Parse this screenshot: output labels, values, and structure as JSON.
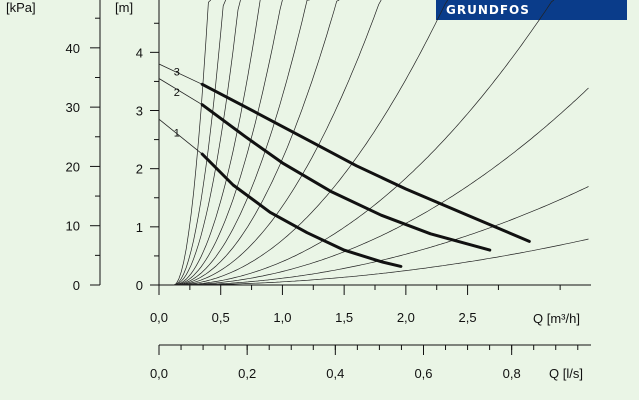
{
  "brand": {
    "name": "GRUNDFOS"
  },
  "chart_data": {
    "type": "line",
    "y_left_label": "[kPa]",
    "y_left_ticks": [
      "0",
      "10",
      "20",
      "30",
      "40"
    ],
    "y_right_label": "[m]",
    "y_right_ticks": [
      "0",
      "1",
      "2",
      "3",
      "4"
    ],
    "x_label": "Q [m³/h]",
    "x_ticks": [
      "0,0",
      "0,5",
      "1,0",
      "1,5",
      "2,0",
      "2,5"
    ],
    "x2_label": "Q [l/s]",
    "x2_ticks": [
      "0,0",
      "0,2",
      "0,4",
      "0,6",
      "0,8"
    ],
    "xlim": [
      0,
      3.5
    ],
    "ylim_m": [
      0,
      4.9
    ],
    "x2lim_ls": [
      0,
      0.98
    ],
    "pump_curves": [
      {
        "label": "1",
        "x": [
          0.35,
          0.6,
          0.9,
          1.2,
          1.5,
          1.8,
          1.96
        ],
        "y": [
          2.25,
          1.72,
          1.25,
          0.9,
          0.6,
          0.4,
          0.32
        ]
      },
      {
        "label": "2",
        "x": [
          0.35,
          0.7,
          1.0,
          1.4,
          1.8,
          2.2,
          2.68
        ],
        "y": [
          3.1,
          2.55,
          2.1,
          1.6,
          1.2,
          0.88,
          0.6
        ]
      },
      {
        "label": "3",
        "x": [
          0.35,
          0.8,
          1.2,
          1.6,
          2.0,
          2.5,
          3.0
        ],
        "y": [
          3.45,
          2.95,
          2.5,
          2.05,
          1.65,
          1.2,
          0.75
        ]
      }
    ],
    "pump_curve_dashes": [
      {
        "label": "1",
        "x": [
          0.0,
          0.35
        ],
        "y": [
          2.85,
          2.25
        ]
      },
      {
        "label": "2",
        "x": [
          0.0,
          0.35
        ],
        "y": [
          3.55,
          3.1
        ]
      },
      {
        "label": "3",
        "x": [
          0.0,
          0.35
        ],
        "y": [
          3.8,
          3.45
        ]
      }
    ],
    "system_curve_k": [
      62,
      30,
      17.5,
      10,
      6.4,
      4.2,
      2.8,
      1.75,
      1.0,
      0.52,
      0.3,
      0.15,
      0.07
    ],
    "system_curve_offset_x": 0.12,
    "grid": false
  }
}
